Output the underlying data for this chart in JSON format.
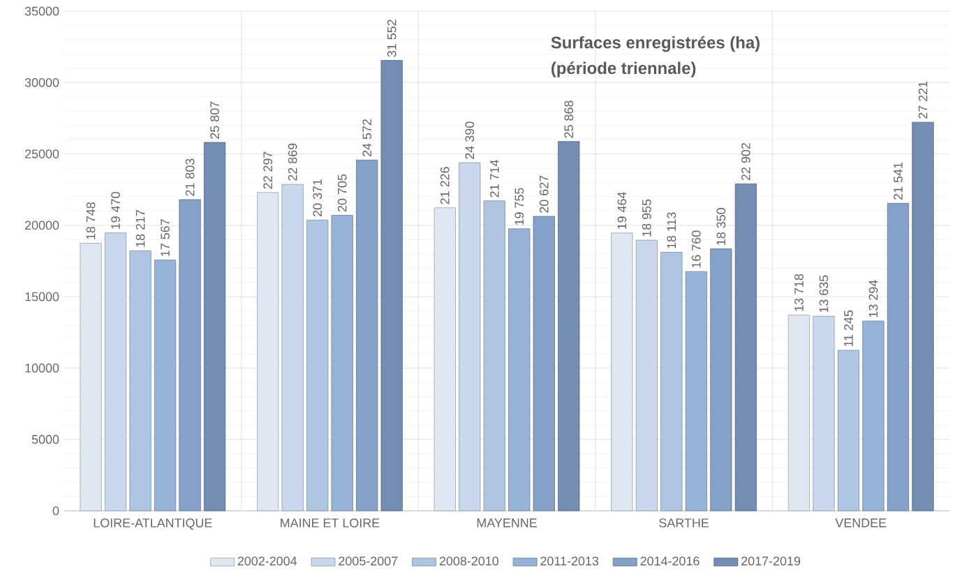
{
  "chart_data": {
    "type": "bar",
    "title": "Surfaces enregistrées (ha)",
    "subtitle": "(période triennale)",
    "categories": [
      "LOIRE-ATLANTIQUE",
      "MAINE ET LOIRE",
      "MAYENNE",
      "SARTHE",
      "VENDEE"
    ],
    "series": [
      {
        "name": "2002-2004",
        "color": "#dfe7f2",
        "values": [
          18748,
          22297,
          21226,
          19464,
          13718
        ],
        "value_labels": [
          "18 748",
          "22 297",
          "21 226",
          "19 464",
          "13 718"
        ]
      },
      {
        "name": "2005-2007",
        "color": "#c9d8ec",
        "values": [
          19470,
          22869,
          24390,
          18955,
          13635
        ],
        "value_labels": [
          "19 470",
          "22 869",
          "24 390",
          "18 955",
          "13 635"
        ]
      },
      {
        "name": "2008-2010",
        "color": "#afc6e3",
        "values": [
          18217,
          20371,
          21714,
          18113,
          11245
        ],
        "value_labels": [
          "18 217",
          "20 371",
          "21 714",
          "18 113",
          "11 245"
        ]
      },
      {
        "name": "2011-2013",
        "color": "#97b3d8",
        "values": [
          17567,
          20705,
          19755,
          16760,
          13294
        ],
        "value_labels": [
          "17 567",
          "20 705",
          "19 755",
          "16 760",
          "13 294"
        ]
      },
      {
        "name": "2014-2016",
        "color": "#86a1c8",
        "values": [
          21803,
          24572,
          20627,
          18350,
          21541
        ],
        "value_labels": [
          "21 803",
          "24 572",
          "20 627",
          "18 350",
          "21 541"
        ]
      },
      {
        "name": "2017-2019",
        "color": "#748db3",
        "values": [
          25807,
          31552,
          25868,
          22902,
          27221
        ],
        "value_labels": [
          "25 807",
          "31 552",
          "25 868",
          "22 902",
          "27 221"
        ]
      }
    ],
    "ylim": [
      0,
      35000
    ],
    "yticks": [
      0,
      5000,
      10000,
      15000,
      20000,
      25000,
      30000,
      35000
    ],
    "grid": true,
    "legend": "bottom"
  }
}
